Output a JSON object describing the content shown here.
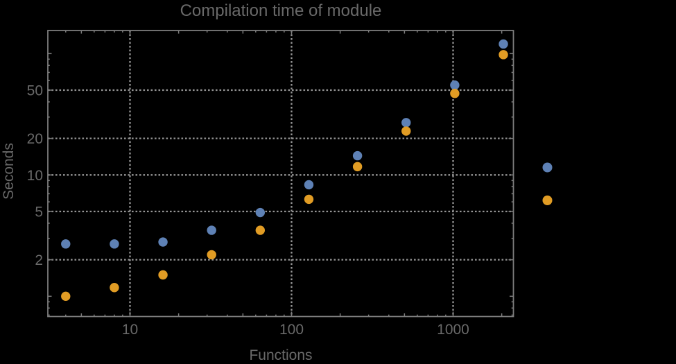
{
  "background_color": "#000000",
  "chart_data": {
    "type": "scatter",
    "title": "Compilation time of module",
    "xlabel": "Functions",
    "ylabel": "Seconds",
    "x_scale": "log",
    "y_scale": "log",
    "x_range": [
      3.1,
      2370
    ],
    "y_range": [
      0.68,
      156
    ],
    "grid_style": "dotted",
    "x_gridlines": [
      10,
      100,
      1000
    ],
    "y_gridlines": [
      2,
      5,
      10,
      20,
      50
    ],
    "x_tick_labels": [
      "10",
      "100",
      "1000"
    ],
    "y_tick_labels": [
      "2",
      "5",
      "10",
      "20",
      "50"
    ],
    "x": [
      4,
      8,
      16,
      32,
      64,
      128,
      256,
      512,
      1024,
      2048
    ],
    "series": [
      {
        "name": "series-1-blue",
        "marker": "disk",
        "color": "#5E81B5",
        "values": [
          2.7,
          2.7,
          2.8,
          3.5,
          4.9,
          8.3,
          14.4,
          27,
          55,
          120
        ]
      },
      {
        "name": "series-2-orange",
        "marker": "disk",
        "color": "#E19C24",
        "values": [
          1.0,
          1.18,
          1.5,
          2.2,
          3.5,
          6.3,
          11.7,
          23,
          47,
          98
        ]
      }
    ],
    "legend": {
      "position": "outside-right",
      "items": [
        {
          "color": "#5E81B5",
          "label": ""
        },
        {
          "color": "#E19C24",
          "label": ""
        }
      ]
    },
    "axis_color": "#7d7d7d",
    "gridline_color": "#959595",
    "label_color": "#696969"
  }
}
